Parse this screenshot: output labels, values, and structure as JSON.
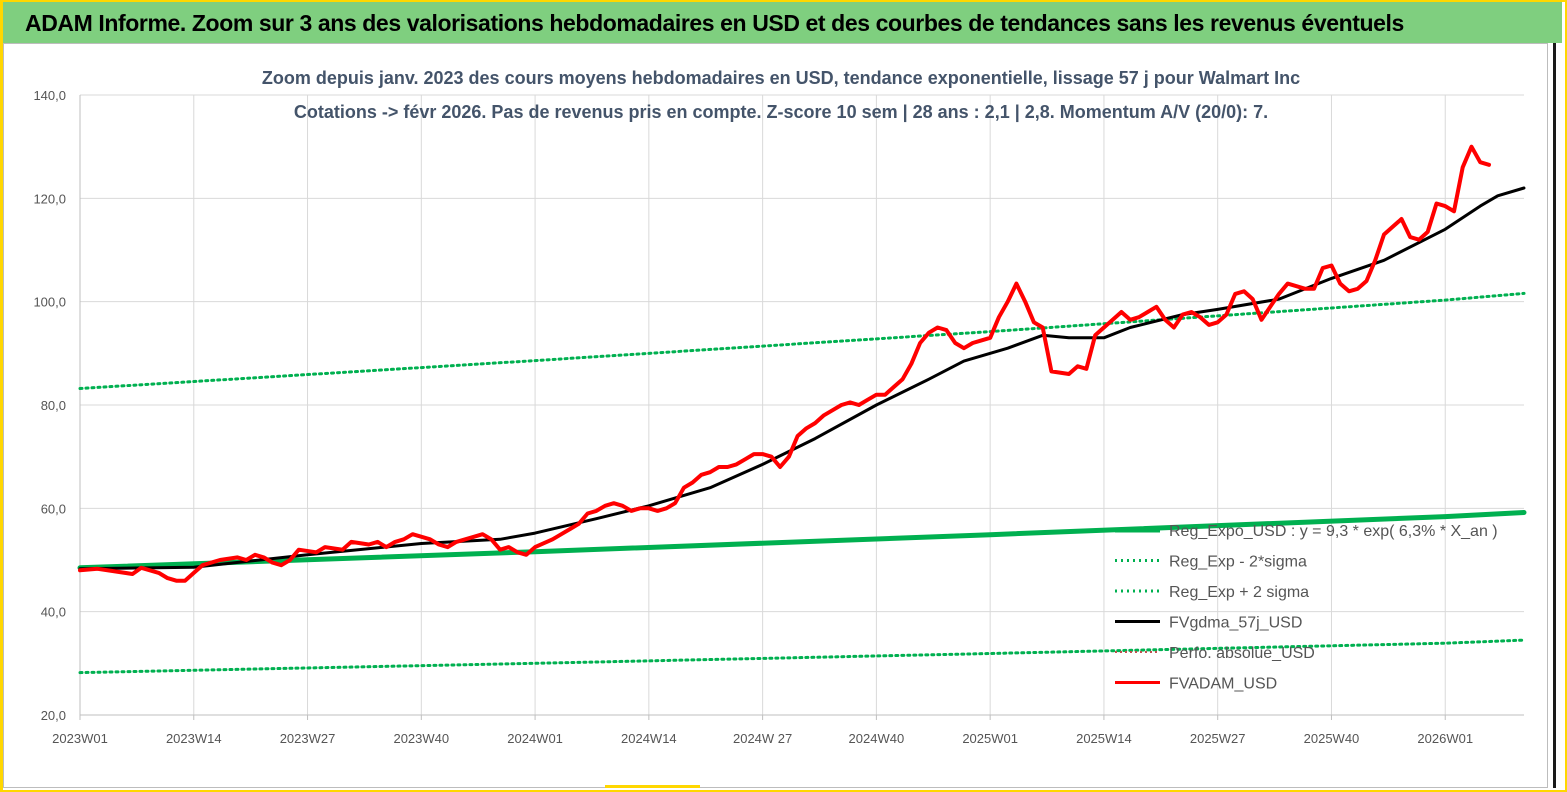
{
  "banner": {
    "title": "ADAM Informe. Zoom sur 3 ans des valorisations hebdomadaires en USD et des courbes de tendances sans les revenus éventuels"
  },
  "colors": {
    "banner_bg": "#7fcf7f",
    "frame": "#ffd700",
    "regression": "#00b050",
    "sigma_bands": "#00b050",
    "fvgdma": "#000000",
    "fvadam": "#ff0000",
    "perfo": "#c0504d"
  },
  "chart_data": {
    "type": "line",
    "title_lines": [
      "Zoom depuis janv. 2023 des cours moyens hebdomadaires en USD, tendance exponentielle, lissage 57 j pour Walmart Inc",
      "Cotations -> févr 2026. Pas de revenus pris en compte. Z-score 10 sem | 28 ans : 2,1 | 2,8. Momentum A/V (20/0): 7."
    ],
    "ylim": [
      20,
      140
    ],
    "yticks": [
      "20,0",
      "40,0",
      "60,0",
      "80,0",
      "100,0",
      "120,0",
      "140,0"
    ],
    "x_tick_labels": [
      "2023W01",
      "2023W14",
      "2023W27",
      "2023W40",
      "2024W01",
      "2024W14",
      "2024W 27",
      "2024W40",
      "2025W01",
      "2025W14",
      "2025W27",
      "2025W40",
      "2026W01"
    ],
    "x_tick_weeks": [
      0,
      13,
      26,
      39,
      52,
      65,
      78,
      91,
      104,
      117,
      130,
      143,
      156
    ],
    "x_range_weeks": [
      0,
      165
    ],
    "grid": "vertical",
    "legend_position": "bottom-right",
    "series": [
      {
        "name": "Reg_Expo_USD : y = 9,3 * exp( 6,3% * X_an )",
        "style": "thick-solid",
        "points": [
          [
            0,
            48.5
          ],
          [
            52,
            51.6
          ],
          [
            104,
            54.9
          ],
          [
            156,
            58.4
          ],
          [
            165,
            59.2
          ]
        ]
      },
      {
        "name": "Reg_Exp - 2*sigma",
        "style": "dotted",
        "points": [
          [
            0,
            28.2
          ],
          [
            52,
            30.0
          ],
          [
            104,
            31.9
          ],
          [
            156,
            33.9
          ],
          [
            165,
            34.5
          ]
        ]
      },
      {
        "name": "Reg_Exp + 2 sigma",
        "style": "dotted",
        "points": [
          [
            0,
            83.2
          ],
          [
            52,
            88.6
          ],
          [
            104,
            94.2
          ],
          [
            156,
            100.3
          ],
          [
            165,
            101.6
          ]
        ]
      },
      {
        "name": "FVgdma_57j_USD",
        "style": "solid",
        "points": [
          [
            0,
            48.3
          ],
          [
            13,
            48.6
          ],
          [
            26,
            51.0
          ],
          [
            39,
            53.2
          ],
          [
            48,
            54.0
          ],
          [
            52,
            55.2
          ],
          [
            59,
            58.0
          ],
          [
            65,
            60.5
          ],
          [
            72,
            64.0
          ],
          [
            78,
            68.5
          ],
          [
            84,
            73.5
          ],
          [
            91,
            80.0
          ],
          [
            97,
            85.0
          ],
          [
            101,
            88.5
          ],
          [
            106,
            91.0
          ],
          [
            110,
            93.5
          ],
          [
            113,
            93.0
          ],
          [
            117,
            93.0
          ],
          [
            120,
            95.0
          ],
          [
            126,
            97.5
          ],
          [
            130,
            98.5
          ],
          [
            137,
            100.5
          ],
          [
            143,
            104.5
          ],
          [
            149,
            108.0
          ],
          [
            156,
            114.0
          ],
          [
            160,
            118.5
          ],
          [
            162,
            120.5
          ],
          [
            165,
            122.0
          ]
        ]
      },
      {
        "name": "Perfo. absolue_USD",
        "style": "hidden",
        "points": []
      },
      {
        "name": "FVADAM_USD",
        "style": "thick-solid",
        "points": [
          [
            0,
            48.0
          ],
          [
            2,
            48.3
          ],
          [
            4,
            47.8
          ],
          [
            6,
            47.3
          ],
          [
            7,
            48.5
          ],
          [
            9,
            47.5
          ],
          [
            10,
            46.5
          ],
          [
            11,
            46.0
          ],
          [
            12,
            46.0
          ],
          [
            13,
            47.5
          ],
          [
            14,
            49.0
          ],
          [
            16,
            50.0
          ],
          [
            18,
            50.5
          ],
          [
            19,
            50.0
          ],
          [
            20,
            51.0
          ],
          [
            21,
            50.5
          ],
          [
            22,
            49.5
          ],
          [
            23,
            49.0
          ],
          [
            24,
            50.0
          ],
          [
            25,
            52.0
          ],
          [
            27,
            51.5
          ],
          [
            28,
            52.5
          ],
          [
            30,
            52.0
          ],
          [
            31,
            53.5
          ],
          [
            33,
            53.0
          ],
          [
            34,
            53.5
          ],
          [
            35,
            52.5
          ],
          [
            36,
            53.5
          ],
          [
            37,
            54.0
          ],
          [
            38,
            55.0
          ],
          [
            40,
            54.0
          ],
          [
            41,
            53.0
          ],
          [
            42,
            52.5
          ],
          [
            43,
            53.5
          ],
          [
            45,
            54.5
          ],
          [
            46,
            55.0
          ],
          [
            47,
            54.0
          ],
          [
            48,
            52.0
          ],
          [
            49,
            52.5
          ],
          [
            50,
            51.5
          ],
          [
            51,
            51.0
          ],
          [
            52,
            52.5
          ],
          [
            54,
            54.0
          ],
          [
            55,
            55.0
          ],
          [
            56,
            56.0
          ],
          [
            57,
            57.0
          ],
          [
            58,
            59.0
          ],
          [
            59,
            59.5
          ],
          [
            60,
            60.5
          ],
          [
            61,
            61.0
          ],
          [
            62,
            60.5
          ],
          [
            63,
            59.5
          ],
          [
            64,
            60.0
          ],
          [
            65,
            60.0
          ],
          [
            66,
            59.5
          ],
          [
            67,
            60.0
          ],
          [
            68,
            61.0
          ],
          [
            69,
            64.0
          ],
          [
            70,
            65.0
          ],
          [
            71,
            66.5
          ],
          [
            72,
            67.0
          ],
          [
            73,
            68.0
          ],
          [
            74,
            68.0
          ],
          [
            75,
            68.5
          ],
          [
            76,
            69.5
          ],
          [
            77,
            70.5
          ],
          [
            78,
            70.5
          ],
          [
            79,
            70.0
          ],
          [
            80,
            68.0
          ],
          [
            81,
            70.0
          ],
          [
            82,
            74.0
          ],
          [
            83,
            75.5
          ],
          [
            84,
            76.5
          ],
          [
            85,
            78.0
          ],
          [
            86,
            79.0
          ],
          [
            87,
            80.0
          ],
          [
            88,
            80.5
          ],
          [
            89,
            80.0
          ],
          [
            90,
            81.0
          ],
          [
            91,
            82.0
          ],
          [
            92,
            82.0
          ],
          [
            93,
            83.5
          ],
          [
            94,
            85.0
          ],
          [
            95,
            88.0
          ],
          [
            96,
            92.0
          ],
          [
            97,
            94.0
          ],
          [
            98,
            95.0
          ],
          [
            99,
            94.5
          ],
          [
            100,
            92.0
          ],
          [
            101,
            91.0
          ],
          [
            102,
            92.0
          ],
          [
            103,
            92.5
          ],
          [
            104,
            93.0
          ],
          [
            105,
            97.0
          ],
          [
            106,
            100.0
          ],
          [
            107,
            103.5
          ],
          [
            108,
            100.0
          ],
          [
            109,
            96.0
          ],
          [
            110,
            95.0
          ],
          [
            111,
            86.5
          ],
          [
            113,
            86.0
          ],
          [
            114,
            87.5
          ],
          [
            115,
            87.0
          ],
          [
            116,
            93.5
          ],
          [
            117,
            95.0
          ],
          [
            118,
            96.5
          ],
          [
            119,
            98.0
          ],
          [
            120,
            96.5
          ],
          [
            121,
            97.0
          ],
          [
            122,
            98.0
          ],
          [
            123,
            99.0
          ],
          [
            124,
            96.5
          ],
          [
            125,
            95.0
          ],
          [
            126,
            97.5
          ],
          [
            127,
            98.0
          ],
          [
            128,
            97.0
          ],
          [
            129,
            95.5
          ],
          [
            130,
            96.0
          ],
          [
            131,
            97.5
          ],
          [
            132,
            101.5
          ],
          [
            133,
            102.0
          ],
          [
            134,
            100.5
          ],
          [
            135,
            96.5
          ],
          [
            136,
            99.0
          ],
          [
            137,
            101.5
          ],
          [
            138,
            103.5
          ],
          [
            139,
            103.0
          ],
          [
            140,
            102.5
          ],
          [
            141,
            102.5
          ],
          [
            142,
            106.5
          ],
          [
            143,
            107.0
          ],
          [
            144,
            103.5
          ],
          [
            145,
            102.0
          ],
          [
            146,
            102.5
          ],
          [
            147,
            104.0
          ],
          [
            148,
            108.0
          ],
          [
            149,
            113.0
          ],
          [
            150,
            114.5
          ],
          [
            151,
            116.0
          ],
          [
            152,
            112.5
          ],
          [
            153,
            112.0
          ],
          [
            154,
            113.5
          ],
          [
            155,
            119.0
          ],
          [
            156,
            118.5
          ],
          [
            157,
            117.5
          ],
          [
            158,
            126.0
          ],
          [
            159,
            130.0
          ],
          [
            160,
            127.0
          ],
          [
            161,
            126.5
          ]
        ]
      }
    ]
  }
}
